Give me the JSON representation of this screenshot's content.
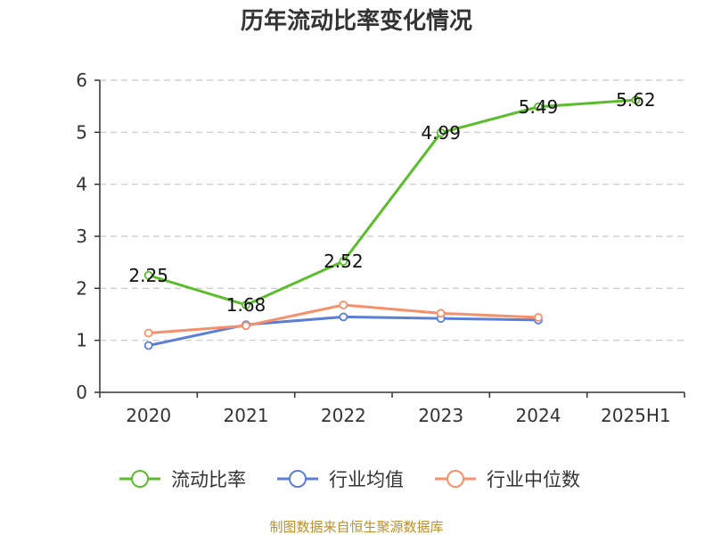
{
  "chart_data": {
    "type": "line",
    "title": "历年流动比率变化情况",
    "categories": [
      "2020",
      "2021",
      "2022",
      "2023",
      "2024",
      "2025H1"
    ],
    "ylim": [
      0,
      6
    ],
    "yticks": [
      "0",
      "1",
      "2",
      "3",
      "4",
      "5",
      "6"
    ],
    "grid": true,
    "legend_position": "bottom",
    "series": [
      {
        "name": "流动比率",
        "color": "#5bbd2b",
        "values": [
          2.25,
          1.68,
          2.52,
          4.99,
          5.49,
          5.62
        ],
        "labels": [
          "2.25",
          "1.68",
          "2.52",
          "4.99",
          "5.49",
          "5.62"
        ]
      },
      {
        "name": "行业均值",
        "color": "#5b7fd6",
        "values": [
          0.9,
          1.3,
          1.45,
          1.42,
          1.39,
          null
        ]
      },
      {
        "name": "行业中位数",
        "color": "#f5906a",
        "values": [
          1.14,
          1.28,
          1.68,
          1.52,
          1.44,
          null
        ]
      }
    ]
  },
  "source_text": "制图数据来自恒生聚源数据库"
}
